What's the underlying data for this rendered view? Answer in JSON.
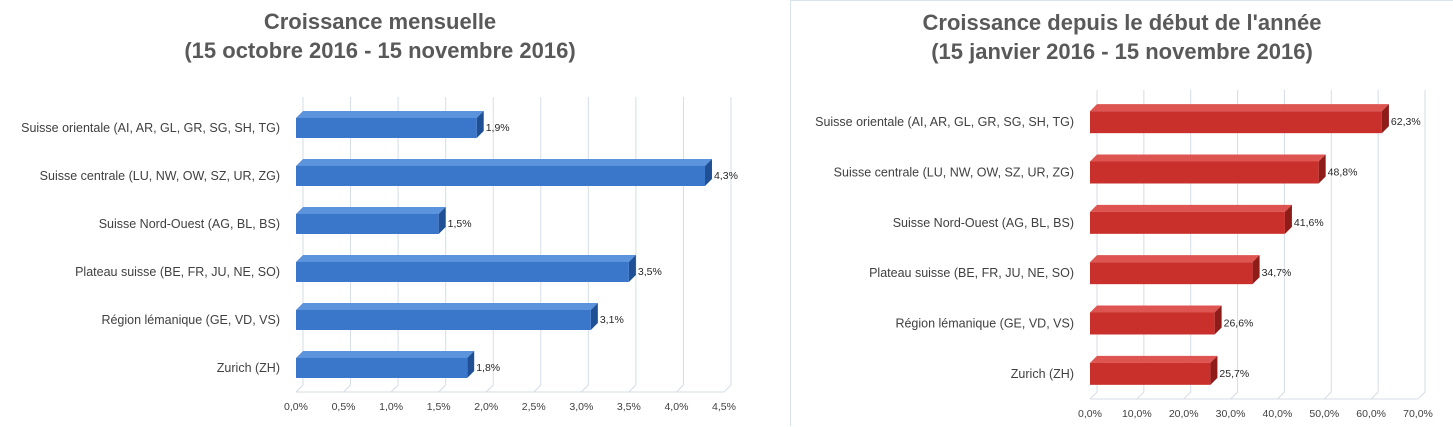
{
  "chart_data": [
    {
      "type": "bar",
      "orientation": "horizontal",
      "title_line1": "Croissance mensuelle",
      "title_line2": "(15 octobre 2016 - 15 novembre 2016)",
      "categories": [
        "Suisse orientale (AI, AR, GL, GR, SG, SH, TG)",
        "Suisse centrale (LU, NW, OW, SZ, UR, ZG)",
        "Suisse Nord-Ouest (AG, BL, BS)",
        "Plateau suisse (BE, FR, JU, NE, SO)",
        "Région lémanique (GE, VD, VS)",
        "Zurich (ZH)"
      ],
      "values": [
        1.9,
        4.3,
        1.5,
        3.5,
        3.1,
        1.8
      ],
      "value_labels": [
        "1,9%",
        "4,3%",
        "1,5%",
        "3,5%",
        "3,1%",
        "1,8%"
      ],
      "xlim": [
        0,
        4.5
      ],
      "ticks": [
        0,
        0.5,
        1,
        1.5,
        2,
        2.5,
        3,
        3.5,
        4,
        4.5
      ],
      "tick_labels": [
        "0,0%",
        "0,5%",
        "1,0%",
        "1,5%",
        "2,0%",
        "2,5%",
        "3,0%",
        "3,5%",
        "4,0%",
        "4,5%"
      ],
      "bar_color": "#3a76c9",
      "bar_top_color": "#5b93dc",
      "bar_dark_color": "#1f4f94",
      "gridlines": true
    },
    {
      "type": "bar",
      "orientation": "horizontal",
      "title_line1": "Croissance depuis le début de l'année",
      "title_line2": "(15 janvier 2016 - 15 novembre 2016)",
      "categories": [
        "Suisse orientale (AI, AR, GL, GR, SG, SH, TG)",
        "Suisse centrale (LU, NW, OW, SZ, UR, ZG)",
        "Suisse Nord-Ouest (AG, BL, BS)",
        "Plateau suisse (BE, FR, JU, NE, SO)",
        "Région lémanique (GE, VD, VS)",
        "Zurich (ZH)"
      ],
      "values": [
        62.3,
        48.8,
        41.6,
        34.7,
        26.6,
        25.7
      ],
      "value_labels": [
        "62,3%",
        "48,8%",
        "41,6%",
        "34,7%",
        "26,6%",
        "25,7%"
      ],
      "xlim": [
        0,
        70
      ],
      "ticks": [
        0,
        10,
        20,
        30,
        40,
        50,
        60,
        70
      ],
      "tick_labels": [
        "0,0%",
        "10,0%",
        "20,0%",
        "30,0%",
        "40,0%",
        "50,0%",
        "60,0%",
        "70,0%"
      ],
      "bar_color": "#c9302c",
      "bar_top_color": "#de5450",
      "bar_dark_color": "#8e1d1a",
      "gridlines": true
    }
  ]
}
